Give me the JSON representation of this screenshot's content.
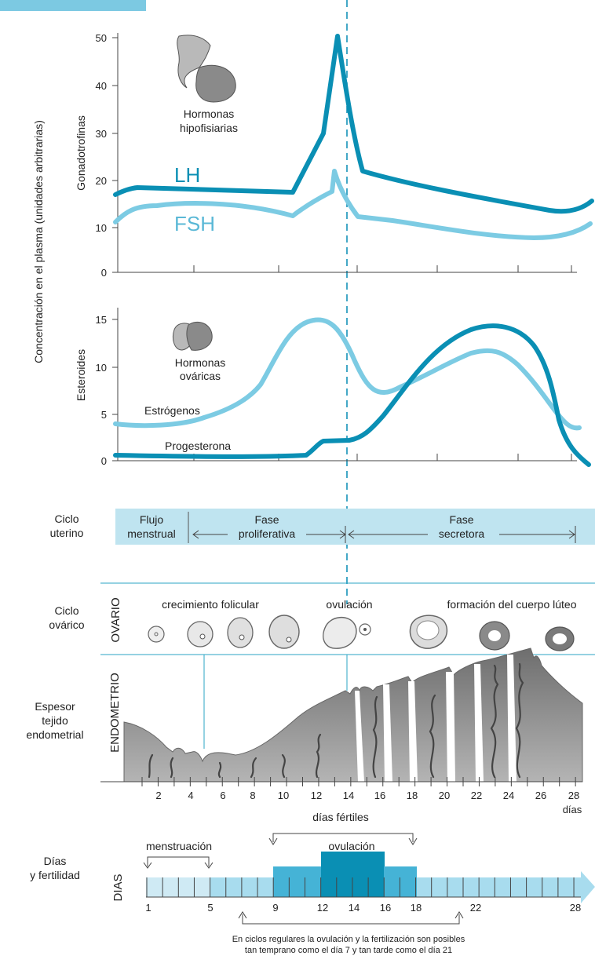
{
  "colors": {
    "lh": "#0a8fb4",
    "fsh": "#7ccbe3",
    "band": "#bfe4f0",
    "cyan": "#2ba6c6",
    "tissue": "#8f8f8f",
    "dashed": "#1592b8"
  },
  "gonadotropins": {
    "ylabel": "Gonadotrofinas",
    "yticks": [
      "0",
      "10",
      "20",
      "30",
      "40",
      "50"
    ],
    "caption_line1": "Hormonas",
    "caption_line2": "hipofisiarias",
    "lh_label": "LH",
    "fsh_label": "FSH"
  },
  "steroids": {
    "ylabel": "Esteroides",
    "yticks": [
      "0",
      "5",
      "10",
      "15"
    ],
    "caption_line1": "Hormonas",
    "caption_line2": "ováricas",
    "estrogen_label": "Estrógenos",
    "progesterone_label": "Progesterona"
  },
  "shared_ylabel": "Concentración en el plasma (unidades arbitrarias)",
  "chart_data": [
    {
      "type": "line",
      "ylim": [
        0,
        50
      ],
      "series": [
        {
          "name": "LH",
          "x": [
            1,
            2,
            11,
            13,
            13.6,
            14.5,
            28,
            29
          ],
          "values": [
            17,
            18,
            17.5,
            30,
            50,
            21.5,
            13,
            15
          ]
        },
        {
          "name": "FSH",
          "x": [
            1,
            2,
            4,
            11,
            13,
            13.4,
            14.5,
            27,
            29
          ],
          "values": [
            11,
            14.5,
            15,
            12.5,
            17,
            21,
            11.5,
            7,
            10.5
          ]
        }
      ]
    },
    {
      "type": "line",
      "ylim": [
        0,
        15
      ],
      "series": [
        {
          "name": "Estrógenos",
          "x": [
            1,
            4,
            10,
            12.5,
            15,
            18,
            23,
            28.5
          ],
          "values": [
            3.8,
            4,
            7.5,
            14.8,
            7,
            8.5,
            11.5,
            3.3
          ]
        },
        {
          "name": "Progesterona",
          "x": [
            1,
            10,
            12,
            14,
            16,
            20,
            23,
            26,
            29
          ],
          "values": [
            0.3,
            0.2,
            0.5,
            1.8,
            2.3,
            8,
            14.3,
            11,
            0
          ]
        }
      ]
    }
  ],
  "uterine": {
    "row_label_1": "Ciclo",
    "row_label_2": "uterino",
    "flow_1": "Flujo",
    "flow_2": "menstrual",
    "prolif_1": "Fase",
    "prolif_2": "proliferativa",
    "secret_1": "Fase",
    "secret_2": "secretora"
  },
  "ovarian": {
    "row_label_1": "Ciclo",
    "row_label_2": "ovárico",
    "vertical_label": "OVARIO",
    "growth": "crecimiento folicular",
    "ovulation": "ovulación",
    "luteum": "formación del cuerpo lúteo"
  },
  "endometrium": {
    "row_label_1": "Espesor",
    "row_label_2": "tejido",
    "row_label_3": "endometrial",
    "vertical_label": "ENDOMETRIO",
    "day_ticks": [
      "2",
      "4",
      "6",
      "8",
      "10",
      "12",
      "14",
      "16",
      "18",
      "20",
      "22",
      "24",
      "26",
      "28"
    ],
    "days_unit": "días",
    "fertile_days": "días fértiles"
  },
  "fertility": {
    "row_label_1": "Días",
    "row_label_2": "y fertilidad",
    "vertical_label": "DIAS",
    "menstruation": "menstruación",
    "ovulation": "ovulación",
    "day_labels": [
      "1",
      "5",
      "9",
      "12",
      "14",
      "16",
      "18",
      "22",
      "28"
    ],
    "note_line1": "En ciclos regulares la ovulación y la fertilización son posibles",
    "note_line2": "tan temprano como el día 7 y tan tarde como el día 21"
  }
}
